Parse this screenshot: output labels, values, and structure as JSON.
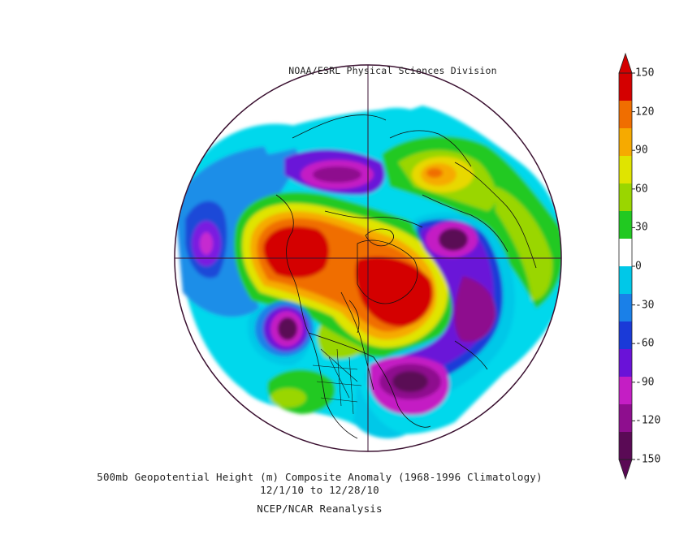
{
  "credit": "NOAA/ESRL Physical Sciences Division",
  "title_line1": "500mb Geopotential Height (m) Composite Anomaly (1968-1996 Climatology)",
  "title_line2": "12/1/10  to 12/28/10",
  "title_line3": "NCEP/NCAR Reanalysis",
  "colorbar": {
    "labels": [
      "150",
      "120",
      "90",
      "60",
      "30",
      "0",
      "-30",
      "-60",
      "-90",
      "-120",
      "-150"
    ],
    "colors": [
      "#5a0a55",
      "#8e0e8e",
      "#c41ec4",
      "#6a12d8",
      "#1a3ad8",
      "#1a80e8",
      "#00c8e8",
      "#ffffff",
      "#21c921",
      "#9ad600",
      "#e0e400",
      "#f6aa00",
      "#f06e00",
      "#d40000"
    ]
  },
  "map": {
    "projection": "North Polar Stereographic",
    "variable": "500mb geopotential height anomaly"
  }
}
